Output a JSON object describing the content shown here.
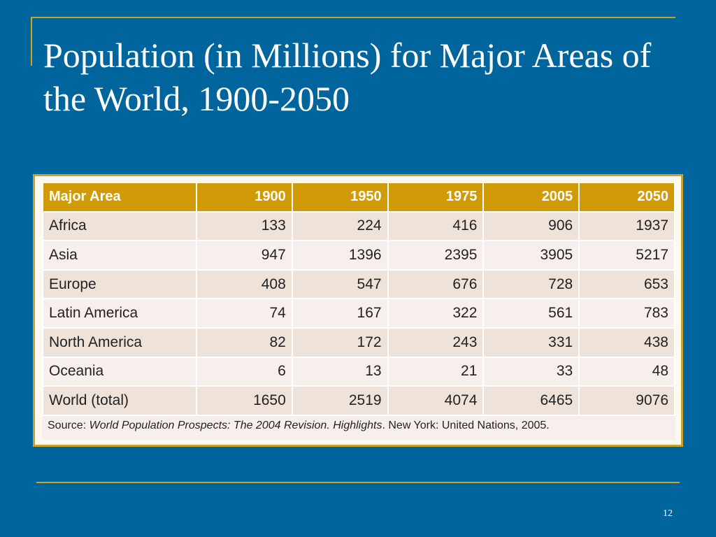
{
  "slide": {
    "title": "Population (in Millions) for Major Areas of the World, 1900-2050",
    "page_number": "12",
    "colors": {
      "background": "#00659c",
      "accent": "#c9a227",
      "header_fill": "#d19a07"
    }
  },
  "table": {
    "headers": [
      "Major Area",
      "1900",
      "1950",
      "1975",
      "2005",
      "2050"
    ],
    "rows": [
      [
        "Africa",
        "133",
        "224",
        "416",
        "906",
        "1937"
      ],
      [
        "Asia",
        "947",
        "1396",
        "2395",
        "3905",
        "5217"
      ],
      [
        "Europe",
        "408",
        "547",
        "676",
        "728",
        "653"
      ],
      [
        "Latin America",
        "74",
        "167",
        "322",
        "561",
        "783"
      ],
      [
        "North America",
        "82",
        "172",
        "243",
        "331",
        "438"
      ],
      [
        "Oceania",
        "6",
        "13",
        "21",
        "33",
        "48"
      ],
      [
        "World (total)",
        "1650",
        "2519",
        "4074",
        "6465",
        "9076"
      ]
    ],
    "source": {
      "prefix": "Source: ",
      "publication": "World Population Prospects: The 2004 Revision. Highlights",
      "suffix": ". New York: United Nations, 2005."
    }
  }
}
